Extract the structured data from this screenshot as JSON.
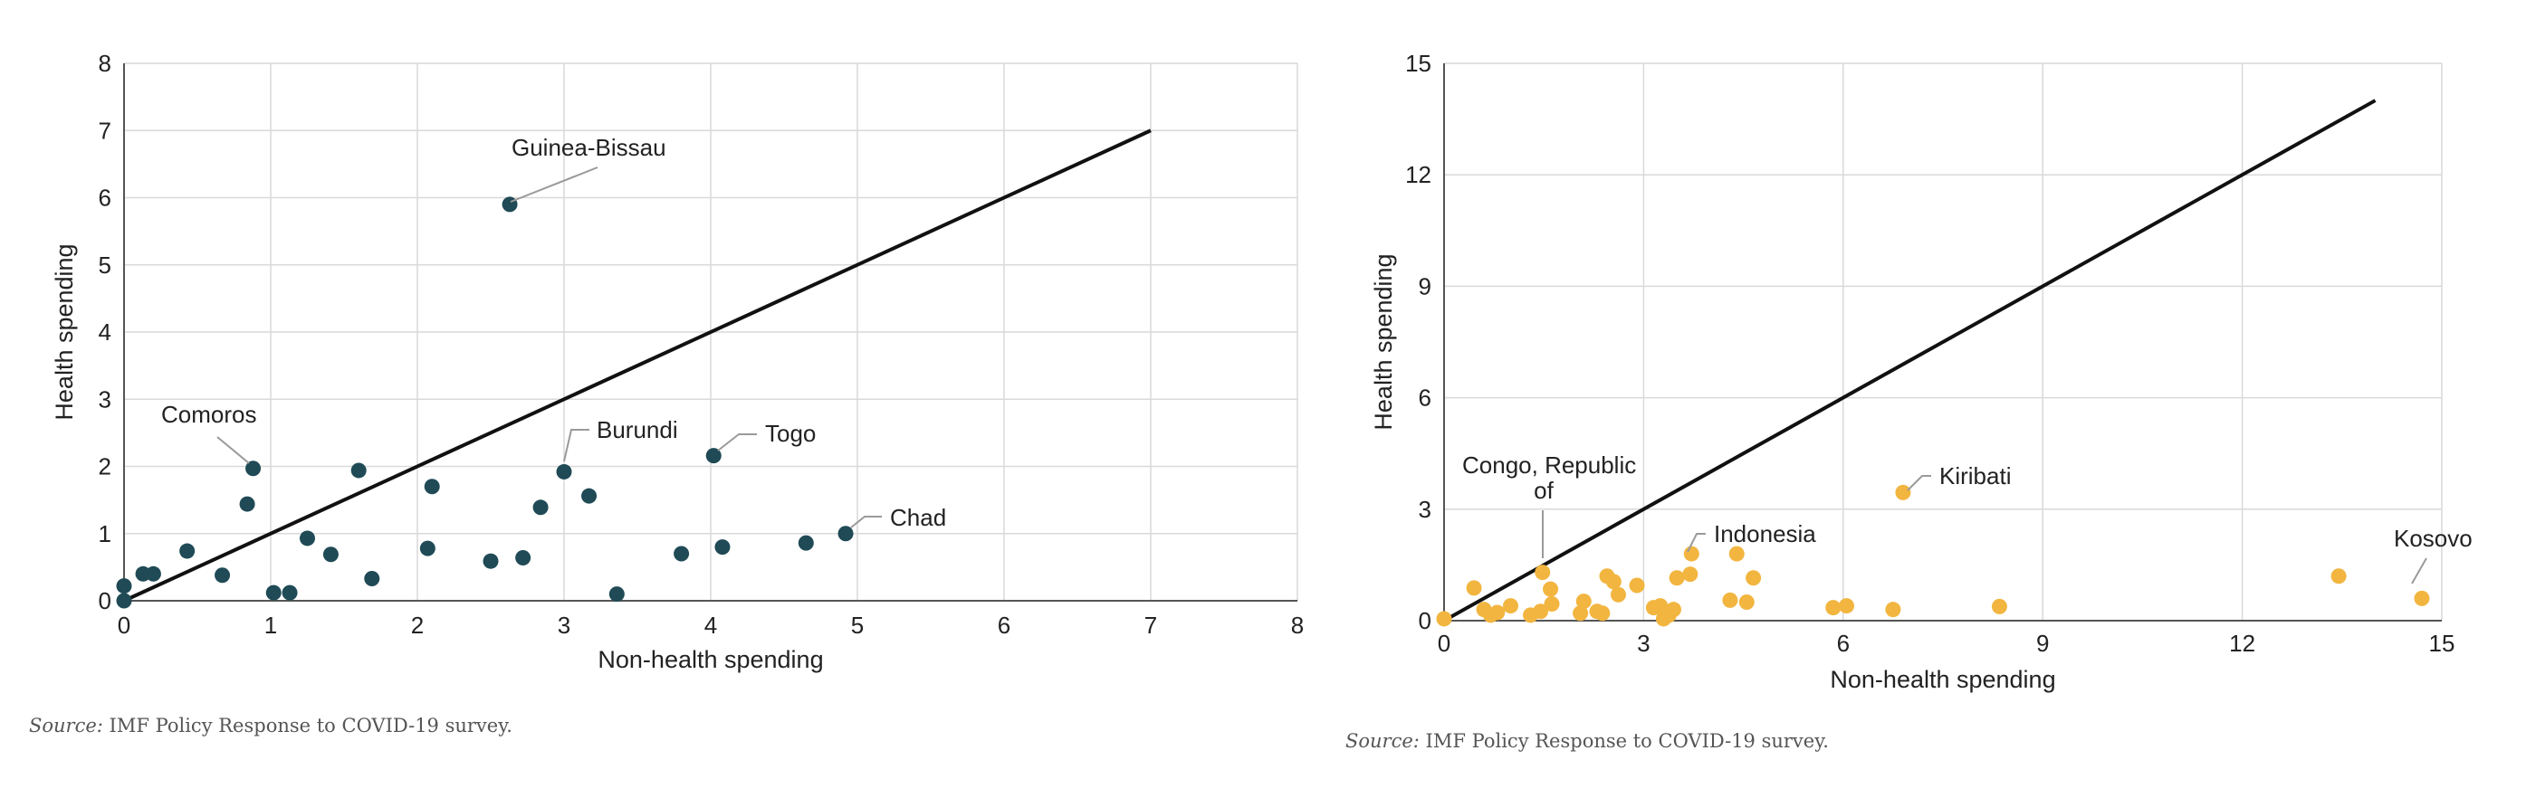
{
  "chart_data": [
    {
      "type": "scatter",
      "xlabel": "Non-health spending",
      "ylabel": "Health spending",
      "xlim": [
        0,
        8
      ],
      "ylim": [
        0,
        8
      ],
      "xticks": [
        0,
        1,
        2,
        3,
        4,
        5,
        6,
        7,
        8
      ],
      "yticks": [
        0,
        1,
        2,
        3,
        4,
        5,
        6,
        7,
        8
      ],
      "grid": true,
      "point_color": "#1f4a56",
      "reference_line": {
        "from": [
          0,
          0
        ],
        "to": [
          7,
          7
        ]
      },
      "points": [
        {
          "x": 0.0,
          "y": 0.0
        },
        {
          "x": 0.0,
          "y": 0.22
        },
        {
          "x": 0.13,
          "y": 0.4
        },
        {
          "x": 0.2,
          "y": 0.4
        },
        {
          "x": 0.43,
          "y": 0.74
        },
        {
          "x": 0.67,
          "y": 0.38
        },
        {
          "x": 0.84,
          "y": 1.44
        },
        {
          "x": 0.88,
          "y": 1.97
        },
        {
          "x": 1.02,
          "y": 0.12
        },
        {
          "x": 1.13,
          "y": 0.12
        },
        {
          "x": 1.25,
          "y": 0.93
        },
        {
          "x": 1.41,
          "y": 0.69
        },
        {
          "x": 1.6,
          "y": 1.94
        },
        {
          "x": 1.69,
          "y": 0.33
        },
        {
          "x": 2.07,
          "y": 0.78
        },
        {
          "x": 2.1,
          "y": 1.7
        },
        {
          "x": 2.5,
          "y": 0.59
        },
        {
          "x": 2.63,
          "y": 5.9
        },
        {
          "x": 2.72,
          "y": 0.64
        },
        {
          "x": 2.84,
          "y": 1.39
        },
        {
          "x": 3.0,
          "y": 1.92
        },
        {
          "x": 3.17,
          "y": 1.56
        },
        {
          "x": 3.36,
          "y": 0.1
        },
        {
          "x": 3.8,
          "y": 0.7
        },
        {
          "x": 4.02,
          "y": 2.16
        },
        {
          "x": 4.08,
          "y": 0.8
        },
        {
          "x": 4.65,
          "y": 0.86
        },
        {
          "x": 4.92,
          "y": 1.0
        }
      ],
      "annotations": [
        {
          "label": "Guinea-Bissau",
          "x": 2.63,
          "y": 5.9
        },
        {
          "label": "Comoros",
          "x": 0.88,
          "y": 1.97
        },
        {
          "label": "Burundi",
          "x": 3.0,
          "y": 1.92
        },
        {
          "label": "Togo",
          "x": 4.02,
          "y": 2.16
        },
        {
          "label": "Chad",
          "x": 4.92,
          "y": 1.0
        }
      ]
    },
    {
      "type": "scatter",
      "xlabel": "Non-health spending",
      "ylabel": "Health spending",
      "xlim": [
        0,
        15
      ],
      "ylim": [
        0,
        15
      ],
      "xticks": [
        0,
        3,
        6,
        9,
        12,
        15
      ],
      "yticks": [
        0,
        3,
        6,
        9,
        12,
        15
      ],
      "grid": true,
      "point_color": "#f2b53f",
      "reference_line": {
        "from": [
          0,
          0
        ],
        "to": [
          14,
          14
        ]
      },
      "points": [
        {
          "x": 0.0,
          "y": 0.05
        },
        {
          "x": 0.45,
          "y": 0.88
        },
        {
          "x": 0.6,
          "y": 0.3
        },
        {
          "x": 0.7,
          "y": 0.15
        },
        {
          "x": 0.8,
          "y": 0.22
        },
        {
          "x": 1.0,
          "y": 0.4
        },
        {
          "x": 1.3,
          "y": 0.15
        },
        {
          "x": 1.45,
          "y": 0.25
        },
        {
          "x": 1.48,
          "y": 1.3
        },
        {
          "x": 1.6,
          "y": 0.85
        },
        {
          "x": 1.62,
          "y": 0.45
        },
        {
          "x": 2.05,
          "y": 0.2
        },
        {
          "x": 2.1,
          "y": 0.52
        },
        {
          "x": 2.3,
          "y": 0.25
        },
        {
          "x": 2.38,
          "y": 0.2
        },
        {
          "x": 2.45,
          "y": 1.2
        },
        {
          "x": 2.55,
          "y": 1.05
        },
        {
          "x": 2.62,
          "y": 0.7
        },
        {
          "x": 2.9,
          "y": 0.95
        },
        {
          "x": 3.15,
          "y": 0.35
        },
        {
          "x": 3.25,
          "y": 0.4
        },
        {
          "x": 3.3,
          "y": 0.05
        },
        {
          "x": 3.38,
          "y": 0.15
        },
        {
          "x": 3.45,
          "y": 0.3
        },
        {
          "x": 3.5,
          "y": 1.15
        },
        {
          "x": 3.7,
          "y": 1.25
        },
        {
          "x": 3.72,
          "y": 1.8
        },
        {
          "x": 4.3,
          "y": 0.55
        },
        {
          "x": 4.4,
          "y": 1.8
        },
        {
          "x": 4.55,
          "y": 0.5
        },
        {
          "x": 4.65,
          "y": 1.15
        },
        {
          "x": 5.85,
          "y": 0.35
        },
        {
          "x": 6.05,
          "y": 0.4
        },
        {
          "x": 6.75,
          "y": 0.3
        },
        {
          "x": 6.9,
          "y": 3.45
        },
        {
          "x": 8.35,
          "y": 0.38
        },
        {
          "x": 13.45,
          "y": 1.2
        },
        {
          "x": 14.7,
          "y": 0.6
        }
      ],
      "annotations": [
        {
          "label": "Congo, Republic",
          "label2": "of",
          "x": 1.48,
          "y": 1.3
        },
        {
          "label": "Indonesia",
          "x": 3.72,
          "y": 1.8
        },
        {
          "label": "Kiribati",
          "x": 6.9,
          "y": 3.45
        },
        {
          "label": "Kosovo",
          "x": 14.7,
          "y": 0.6
        }
      ]
    }
  ],
  "sources": [
    {
      "label": "Source:",
      "text": " IMF Policy Response to COVID-19 survey."
    },
    {
      "label": "Source:",
      "text": " IMF Policy Response to COVID-19 survey."
    }
  ]
}
